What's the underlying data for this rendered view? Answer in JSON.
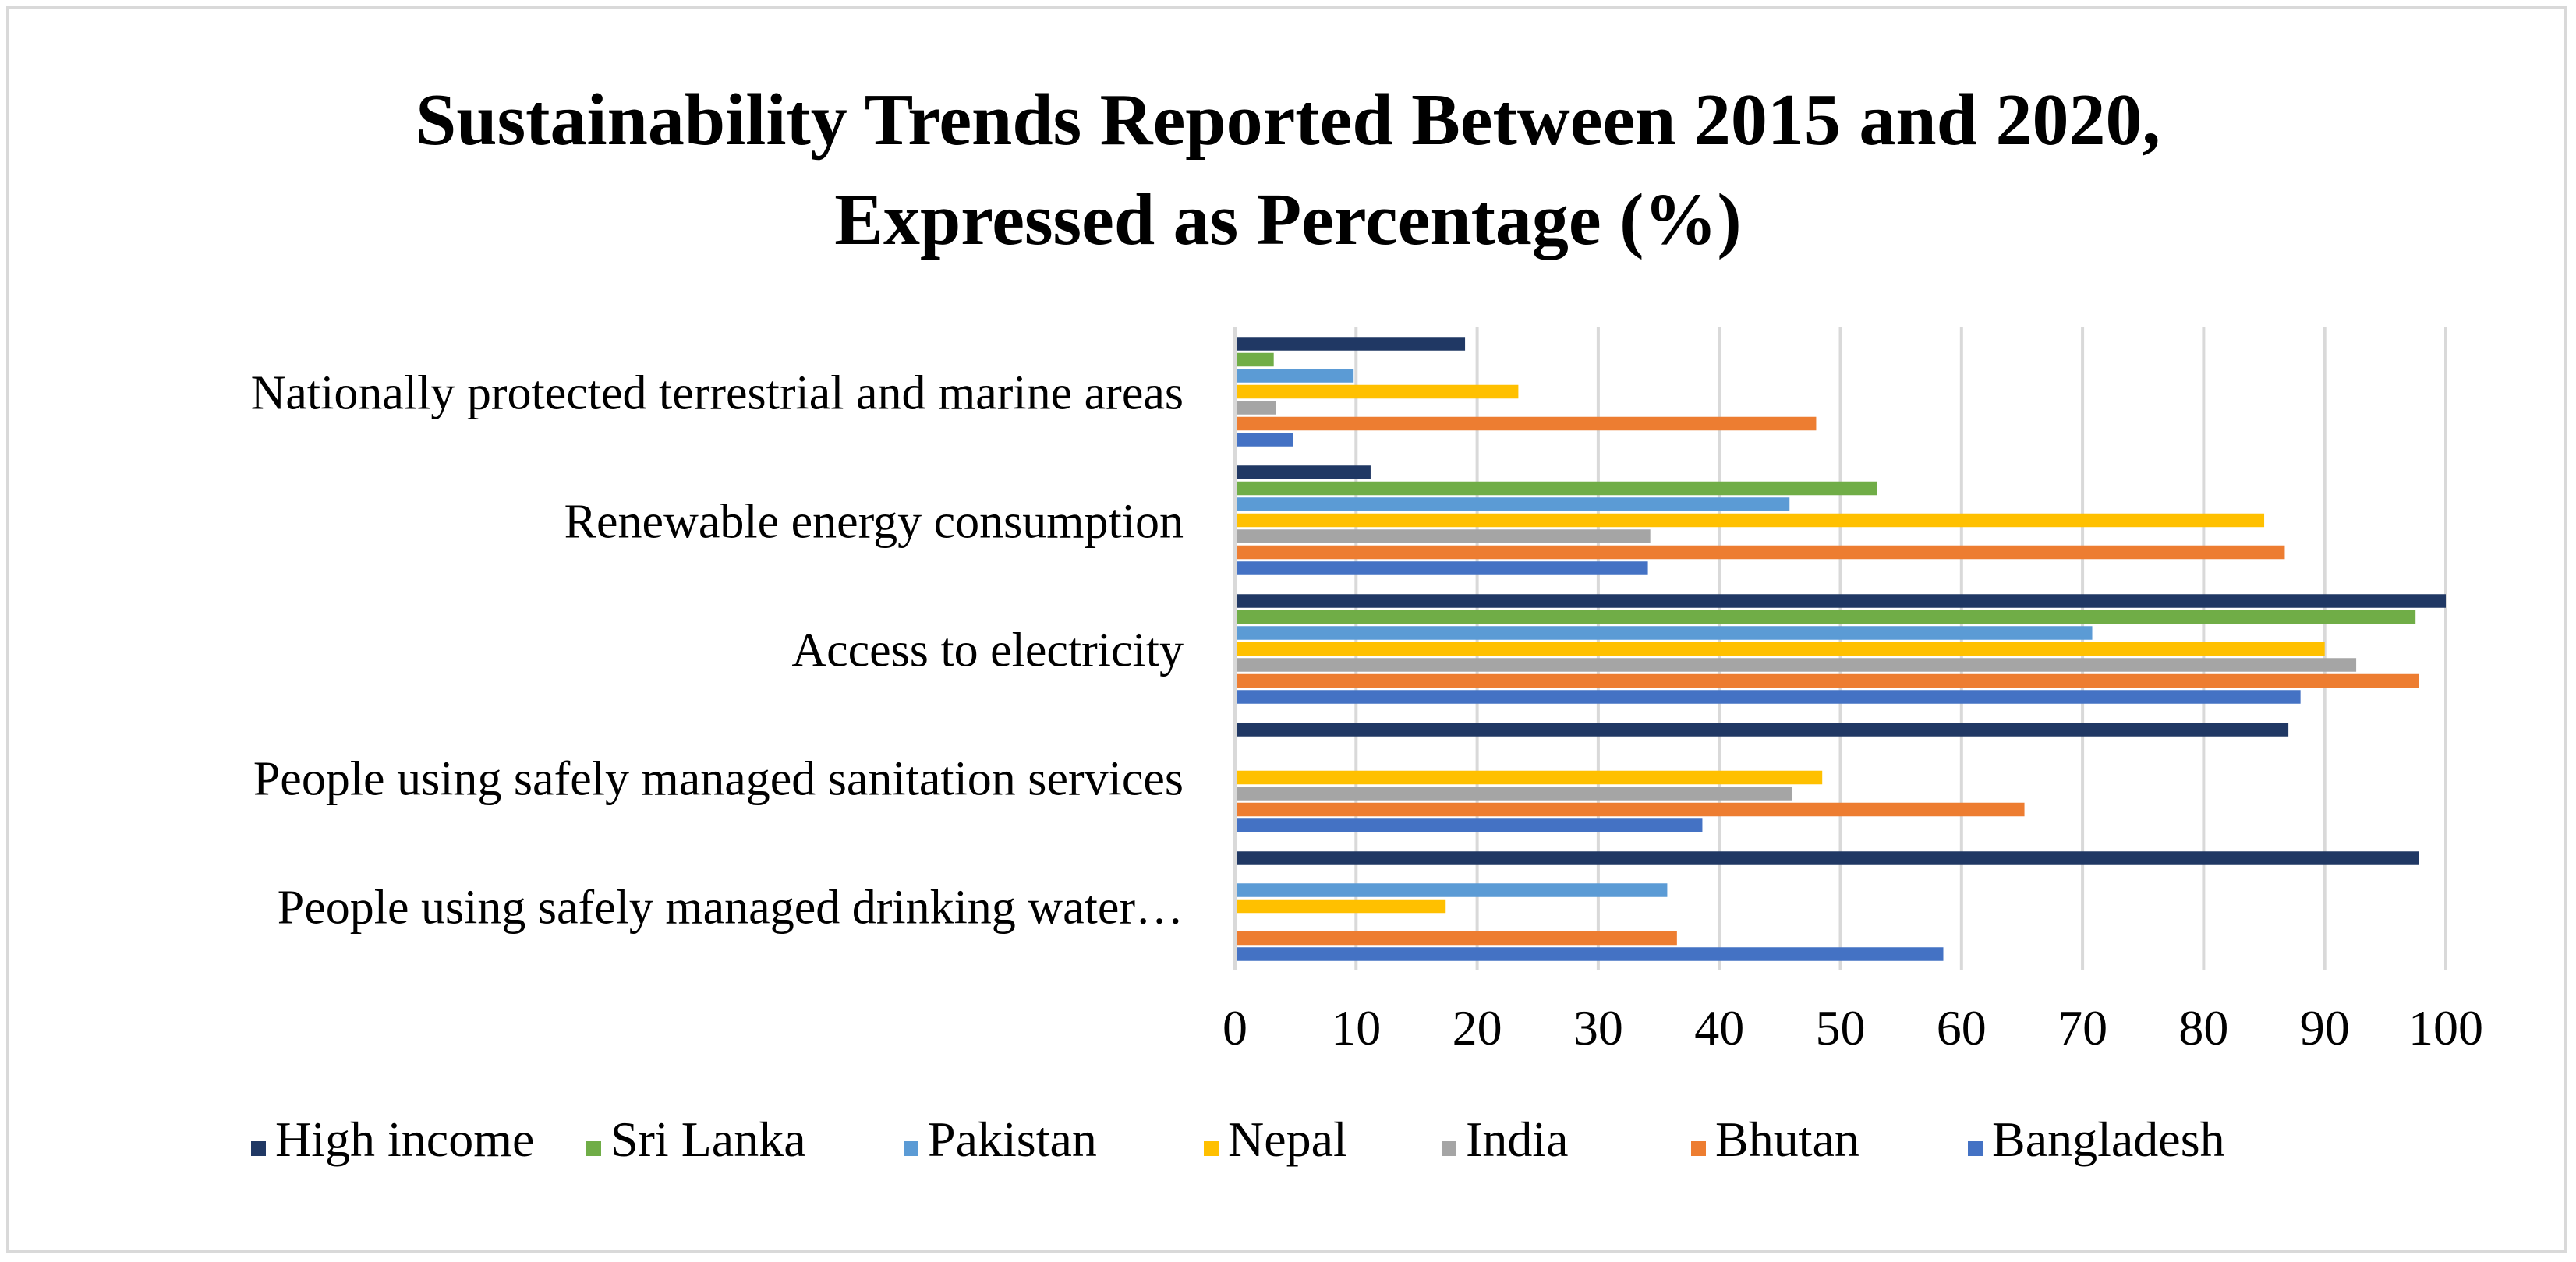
{
  "chart_data": {
    "type": "bar",
    "orientation": "horizontal",
    "title": "Sustainability Trends Reported Between 2015 and 2020,\nExpressed as Percentage (%)",
    "xlabel": "",
    "ylabel": "",
    "xlim": [
      0,
      100
    ],
    "xticks": [
      0,
      10,
      20,
      30,
      40,
      50,
      60,
      70,
      80,
      90,
      100
    ],
    "grid": "vertical",
    "legend": "bottom",
    "categories": [
      "Nationally protected terrestrial and marine areas",
      "Renewable energy consumption",
      "Access to electricity",
      "People using safely managed sanitation services",
      "People using safely managed drinking water…"
    ],
    "series": [
      {
        "name": "High income",
        "color": "#203864",
        "values": [
          19,
          11.2,
          100,
          87,
          97.8
        ]
      },
      {
        "name": "Sri Lanka",
        "color": "#70ad47",
        "values": [
          3.2,
          53,
          97.5,
          null,
          null
        ]
      },
      {
        "name": "Pakistan",
        "color": "#5b9bd5",
        "values": [
          9.8,
          45.8,
          70.8,
          null,
          35.7
        ]
      },
      {
        "name": "Nepal",
        "color": "#ffc000",
        "values": [
          23.4,
          85,
          90,
          48.5,
          17.4
        ]
      },
      {
        "name": "India",
        "color": "#a5a5a5",
        "values": [
          3.4,
          34.3,
          92.6,
          46,
          null
        ]
      },
      {
        "name": "Bhutan",
        "color": "#ed7d31",
        "values": [
          48,
          86.7,
          97.8,
          65.2,
          36.5
        ]
      },
      {
        "name": "Bangladesh",
        "color": "#4472c4",
        "values": [
          4.8,
          34.1,
          88,
          38.6,
          58.5
        ]
      }
    ]
  }
}
